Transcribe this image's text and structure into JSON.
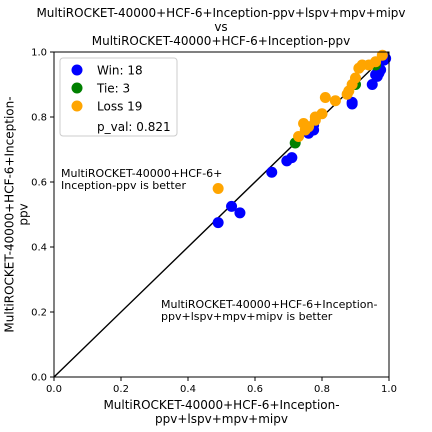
{
  "chart_data": {
    "type": "scatter",
    "title": [
      "MultiROCKET-40000+HCF-6+Inception-ppv+lspv+mpv+mipv",
      "vs",
      "MultiROCKET-40000+HCF-6+Inception-ppv"
    ],
    "xlabel": [
      "MultiROCKET-40000+HCF-6+Inception-",
      "ppv+lspv+mpv+mipv"
    ],
    "ylabel": [
      "MultiROCKET-40000+HCF-6+Inception-",
      "ppv"
    ],
    "xlim": [
      0,
      1
    ],
    "ylim": [
      0,
      1
    ],
    "xticks": [
      "0.0",
      "0.2",
      "0.4",
      "0.6",
      "0.8",
      "1.0"
    ],
    "yticks": [
      "0.0",
      "0.2",
      "0.4",
      "0.6",
      "0.8",
      "1.0"
    ],
    "grid": false,
    "legend_placement": "top-left",
    "diagonal": true,
    "annotations": [
      [
        "MultiROCKET-40000+HCF-6+",
        "Inception-ppv is better"
      ],
      [
        "MultiROCKET-40000+HCF-6+Inception-",
        "ppv+lspv+mpv+mipv is better"
      ]
    ],
    "series": [
      {
        "name": "Win: 18",
        "color": "#0000ff",
        "points": [
          [
            0.49,
            0.475
          ],
          [
            0.53,
            0.525
          ],
          [
            0.555,
            0.505
          ],
          [
            0.65,
            0.63
          ],
          [
            0.695,
            0.665
          ],
          [
            0.71,
            0.675
          ],
          [
            0.76,
            0.75
          ],
          [
            0.775,
            0.76
          ],
          [
            0.775,
            0.775
          ],
          [
            0.89,
            0.84
          ],
          [
            0.89,
            0.845
          ],
          [
            0.95,
            0.9
          ],
          [
            0.96,
            0.93
          ],
          [
            0.965,
            0.925
          ],
          [
            0.97,
            0.935
          ],
          [
            0.975,
            0.945
          ],
          [
            0.985,
            0.975
          ],
          [
            0.99,
            0.98
          ]
        ]
      },
      {
        "name": "Tie: 3",
        "color": "#008000",
        "points": [
          [
            0.72,
            0.72
          ],
          [
            0.9,
            0.9
          ],
          [
            0.96,
            0.96
          ]
        ]
      },
      {
        "name": "Loss 19",
        "color": "#ffa500",
        "points": [
          [
            0.49,
            0.58
          ],
          [
            0.73,
            0.74
          ],
          [
            0.745,
            0.78
          ],
          [
            0.75,
            0.76
          ],
          [
            0.76,
            0.77
          ],
          [
            0.78,
            0.79
          ],
          [
            0.78,
            0.8
          ],
          [
            0.8,
            0.81
          ],
          [
            0.81,
            0.86
          ],
          [
            0.84,
            0.85
          ],
          [
            0.875,
            0.87
          ],
          [
            0.88,
            0.88
          ],
          [
            0.89,
            0.9
          ],
          [
            0.9,
            0.92
          ],
          [
            0.91,
            0.95
          ],
          [
            0.92,
            0.96
          ],
          [
            0.94,
            0.96
          ],
          [
            0.96,
            0.97
          ],
          [
            0.98,
            0.99
          ]
        ]
      }
    ],
    "pval_label": "p_val: 0.821"
  }
}
